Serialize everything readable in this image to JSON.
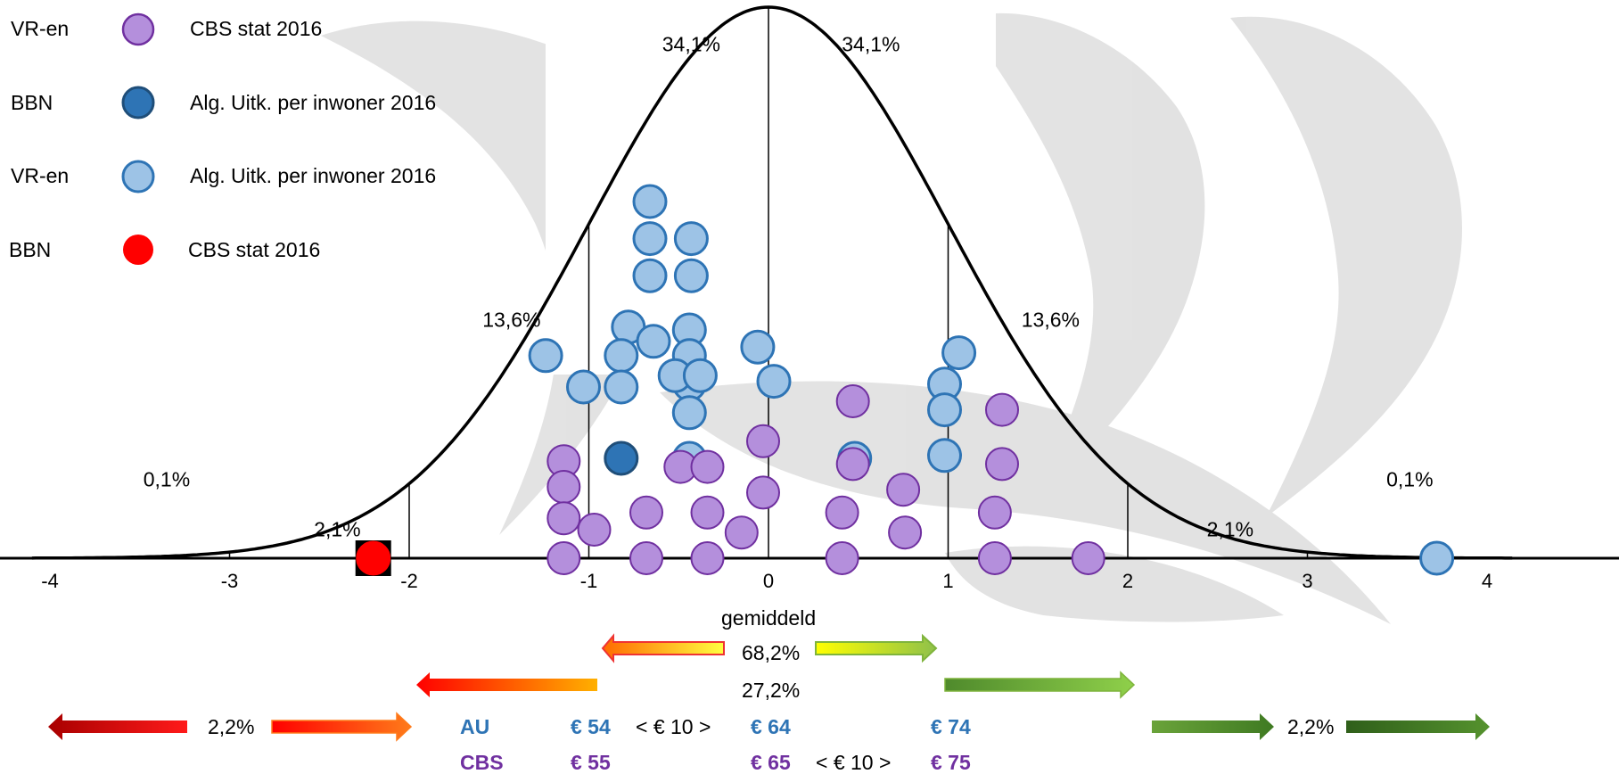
{
  "chart_data": {
    "type": "scatter",
    "title": "",
    "xlabel": "",
    "ylabel": "",
    "xlim": [
      -4.3,
      4.5
    ],
    "xticks": [
      "-4",
      "-3",
      "-2",
      "-1",
      "0",
      "1",
      "2",
      "3",
      "4"
    ],
    "legend": [
      {
        "group": "VR-en",
        "label": "CBS stat 2016",
        "color": "#b48fdc"
      },
      {
        "group": "BBN",
        "label": "Alg. Uitk. per inwoner 2016",
        "color": "#2e74b5"
      },
      {
        "group": "VR-en",
        "label": "Alg. Uitk. per inwoner 2016",
        "color": "#9dc3e6"
      },
      {
        "group": "BBN",
        "label": "CBS stat 2016",
        "color": "#ff0000"
      }
    ],
    "legend_placement": "top-left",
    "region_labels": [
      {
        "text": "0,1%",
        "x": -3.35,
        "level": 0.13
      },
      {
        "text": "2,1%",
        "x": -2.4,
        "level": 0.04
      },
      {
        "text": "13,6%",
        "x": -1.43,
        "level": 0.42
      },
      {
        "text": "34,1%",
        "x": -0.43,
        "level": 0.92
      },
      {
        "text": "34,1%",
        "x": 0.57,
        "level": 0.92
      },
      {
        "text": "13,6%",
        "x": 1.57,
        "level": 0.42
      },
      {
        "text": "2,1%",
        "x": 2.57,
        "level": 0.04
      },
      {
        "text": "0,1%",
        "x": 3.57,
        "level": 0.13
      }
    ],
    "series": [
      {
        "name": "VR-en Alg. Uitk. per inwoner 2016",
        "color": "#9dc3e6",
        "points": [
          {
            "x": -0.66,
            "y": 1.25
          },
          {
            "x": -0.66,
            "y": 1.12
          },
          {
            "x": -0.66,
            "y": 0.99
          },
          {
            "x": -0.43,
            "y": 1.12
          },
          {
            "x": -0.43,
            "y": 0.99
          },
          {
            "x": -0.78,
            "y": 0.81
          },
          {
            "x": -0.64,
            "y": 0.76
          },
          {
            "x": -0.44,
            "y": 0.8
          },
          {
            "x": -0.44,
            "y": 0.71
          },
          {
            "x": -0.44,
            "y": 0.61
          },
          {
            "x": -0.44,
            "y": 0.51
          },
          {
            "x": -0.44,
            "y": 0.35
          },
          {
            "x": -1.24,
            "y": 0.71
          },
          {
            "x": -0.82,
            "y": 0.71
          },
          {
            "x": -1.03,
            "y": 0.6
          },
          {
            "x": -0.82,
            "y": 0.6
          },
          {
            "x": -0.52,
            "y": 0.64
          },
          {
            "x": -0.38,
            "y": 0.64
          },
          {
            "x": -0.06,
            "y": 0.74
          },
          {
            "x": 0.03,
            "y": 0.62
          },
          {
            "x": 0.48,
            "y": 0.35
          },
          {
            "x": 1.06,
            "y": 0.72
          },
          {
            "x": 0.98,
            "y": 0.61
          },
          {
            "x": 0.98,
            "y": 0.52
          },
          {
            "x": 0.98,
            "y": 0.36
          },
          {
            "x": 3.72,
            "y": 0.0
          }
        ]
      },
      {
        "name": "BBN Alg. Uitk. per inwoner 2016",
        "color": "#2e74b5",
        "points": [
          {
            "x": -0.82,
            "y": 0.35
          }
        ]
      },
      {
        "name": "VR-en CBS stat 2016",
        "color": "#b48fdc",
        "points": [
          {
            "x": -1.14,
            "y": 0.34
          },
          {
            "x": -1.14,
            "y": 0.25
          },
          {
            "x": -1.14,
            "y": 0.14
          },
          {
            "x": -1.14,
            "y": 0.0
          },
          {
            "x": -0.97,
            "y": 0.1
          },
          {
            "x": -0.68,
            "y": 0.16
          },
          {
            "x": -0.68,
            "y": 0.0
          },
          {
            "x": -0.49,
            "y": 0.32
          },
          {
            "x": -0.34,
            "y": 0.32
          },
          {
            "x": -0.34,
            "y": 0.16
          },
          {
            "x": -0.34,
            "y": 0.0
          },
          {
            "x": -0.15,
            "y": 0.09
          },
          {
            "x": -0.03,
            "y": 0.41
          },
          {
            "x": -0.03,
            "y": 0.23
          },
          {
            "x": 0.47,
            "y": 0.55
          },
          {
            "x": 0.47,
            "y": 0.33
          },
          {
            "x": 0.41,
            "y": 0.16
          },
          {
            "x": 0.41,
            "y": 0.0
          },
          {
            "x": 0.75,
            "y": 0.24
          },
          {
            "x": 0.76,
            "y": 0.09
          },
          {
            "x": 1.3,
            "y": 0.52
          },
          {
            "x": 1.3,
            "y": 0.33
          },
          {
            "x": 1.26,
            "y": 0.16
          },
          {
            "x": 1.26,
            "y": 0.0
          },
          {
            "x": 1.78,
            "y": 0.0
          }
        ]
      },
      {
        "name": "BBN CBS stat 2016",
        "color": "#ff0000",
        "points": [
          {
            "x": -2.2,
            "y": 0.0
          }
        ]
      }
    ],
    "annotations": {
      "mean": "gemiddeld",
      "range_68": "68,2%",
      "range_27": "27,2%",
      "left_tail": "2,2%",
      "right_tail": "2,2%",
      "au_label": "AU",
      "cbs_label": "CBS",
      "au_values": [
        "€ 54",
        "€ 64",
        "€ 74"
      ],
      "cbs_values": [
        "€ 55",
        "€ 65",
        "€ 75"
      ],
      "au_step": "< € 10  >",
      "cbs_step": "< € 10  >"
    }
  }
}
